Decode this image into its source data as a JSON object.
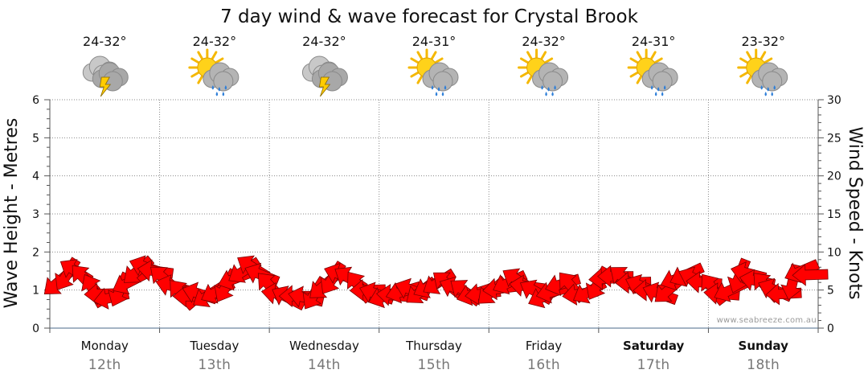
{
  "chart_data": {
    "type": "line",
    "title": "7 day wind & wave forecast for Crystal Brook",
    "ylabel_left": "Wave Height - Metres",
    "ylabel_right": "Wind Speed - Knots",
    "ylim_left": [
      0,
      6
    ],
    "ylim_right": [
      0,
      30
    ],
    "yticks_left": [
      "0",
      "1",
      "2",
      "3",
      "4",
      "5",
      "6"
    ],
    "yticks_right": [
      "0",
      "5",
      "10",
      "15",
      "20",
      "25",
      "30"
    ],
    "grid": true,
    "days": [
      {
        "day": "Monday",
        "date": "12th",
        "temp": "24-32°",
        "icon": "storm-cloud-icon",
        "bold": false
      },
      {
        "day": "Tuesday",
        "date": "13th",
        "temp": "24-32°",
        "icon": "sun-cloud-rain-icon",
        "bold": false
      },
      {
        "day": "Wednesday",
        "date": "14th",
        "temp": "24-32°",
        "icon": "storm-cloud-icon",
        "bold": false
      },
      {
        "day": "Thursday",
        "date": "15th",
        "temp": "24-31°",
        "icon": "sun-cloud-rain-icon",
        "bold": false
      },
      {
        "day": "Friday",
        "date": "16th",
        "temp": "24-32°",
        "icon": "sun-cloud-rain-icon",
        "bold": false
      },
      {
        "day": "Saturday",
        "date": "17th",
        "temp": "24-31°",
        "icon": "sun-cloud-rain-icon",
        "bold": true
      },
      {
        "day": "Sunday",
        "date": "18th",
        "temp": "23-32°",
        "icon": "sun-cloud-rain-icon",
        "bold": true
      }
    ],
    "series": [
      {
        "unit": "knots",
        "values": [
          6,
          7,
          7.5,
          6.5,
          5,
          4.5,
          4,
          5,
          6,
          7.5,
          8,
          7.5,
          6.5,
          5.5,
          4.5,
          4.2,
          4.5,
          4.3,
          4.8,
          5.5,
          6.5,
          7.5,
          8,
          7,
          5.5,
          4.5,
          4,
          4.2,
          4,
          4.5,
          5.5,
          6.5,
          7,
          6.5,
          5.5,
          5,
          4.5,
          4.2,
          4.3,
          4.8,
          5,
          4.8,
          5.5,
          6,
          5.8,
          5.2,
          4.8,
          4.5,
          4.5,
          4.8,
          5.2,
          6,
          6.3,
          5.5,
          4.8,
          4.2,
          4.8,
          5.8,
          5.5,
          4.5,
          4.8,
          5.8,
          6.5,
          6.8,
          6.5,
          6,
          5.5,
          5,
          4.5,
          5,
          6.5,
          7,
          6.5,
          6,
          5.2,
          4.5,
          5,
          6.8,
          7.2,
          6.2,
          5.5,
          5,
          4.5,
          6,
          7.5,
          7
        ]
      }
    ]
  },
  "credit": "www.seabreeze.com.au",
  "colors": {
    "arrow": "#ff0000",
    "arrow_outline": "#7a0000",
    "axis": "#555555",
    "grid": "#8a8a8a"
  }
}
